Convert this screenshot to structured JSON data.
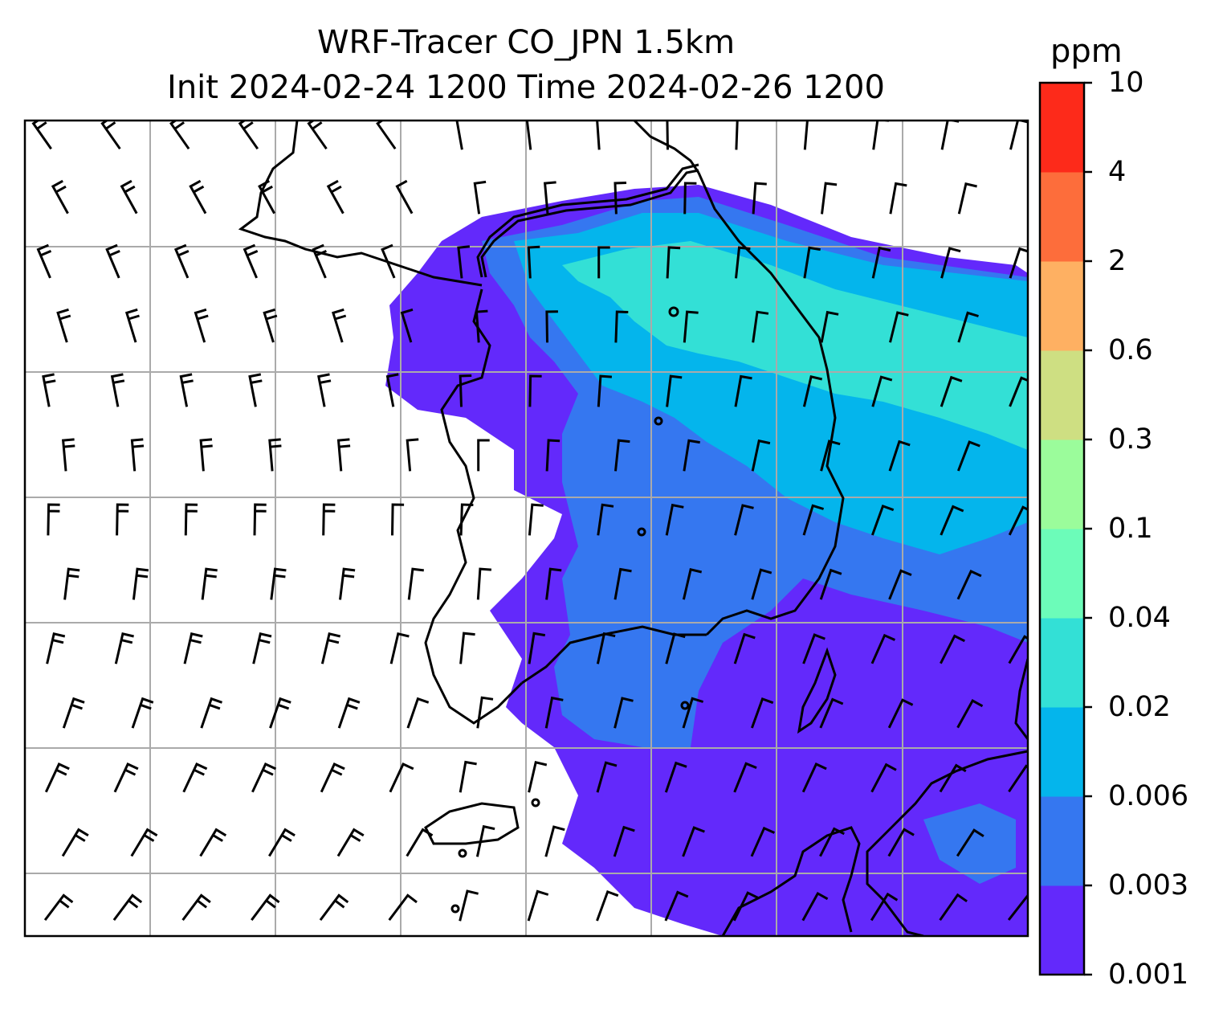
{
  "title": {
    "line1": "WRF-Tracer CO_JPN 1.5km",
    "line2": "Init 2024-02-24 1200 Time 2024-02-26 1200"
  },
  "colorbar": {
    "unit": "ppm",
    "levels": [
      "0.001",
      "0.003",
      "0.006",
      "0.02",
      "0.04",
      "0.1",
      "0.3",
      "0.6",
      "2",
      "4",
      "10"
    ],
    "colors": [
      "#6329fb",
      "#3577f0",
      "#04b5ec",
      "#33e0d6",
      "#6cfcb9",
      "#9bfc9b",
      "#cedf82",
      "#feb062",
      "#fd6d3b",
      "#fd2a1a"
    ]
  },
  "map": {
    "gridlines": true,
    "wind_barbs": true,
    "coastlines": true,
    "grid_color": "#aaaaaa"
  }
}
